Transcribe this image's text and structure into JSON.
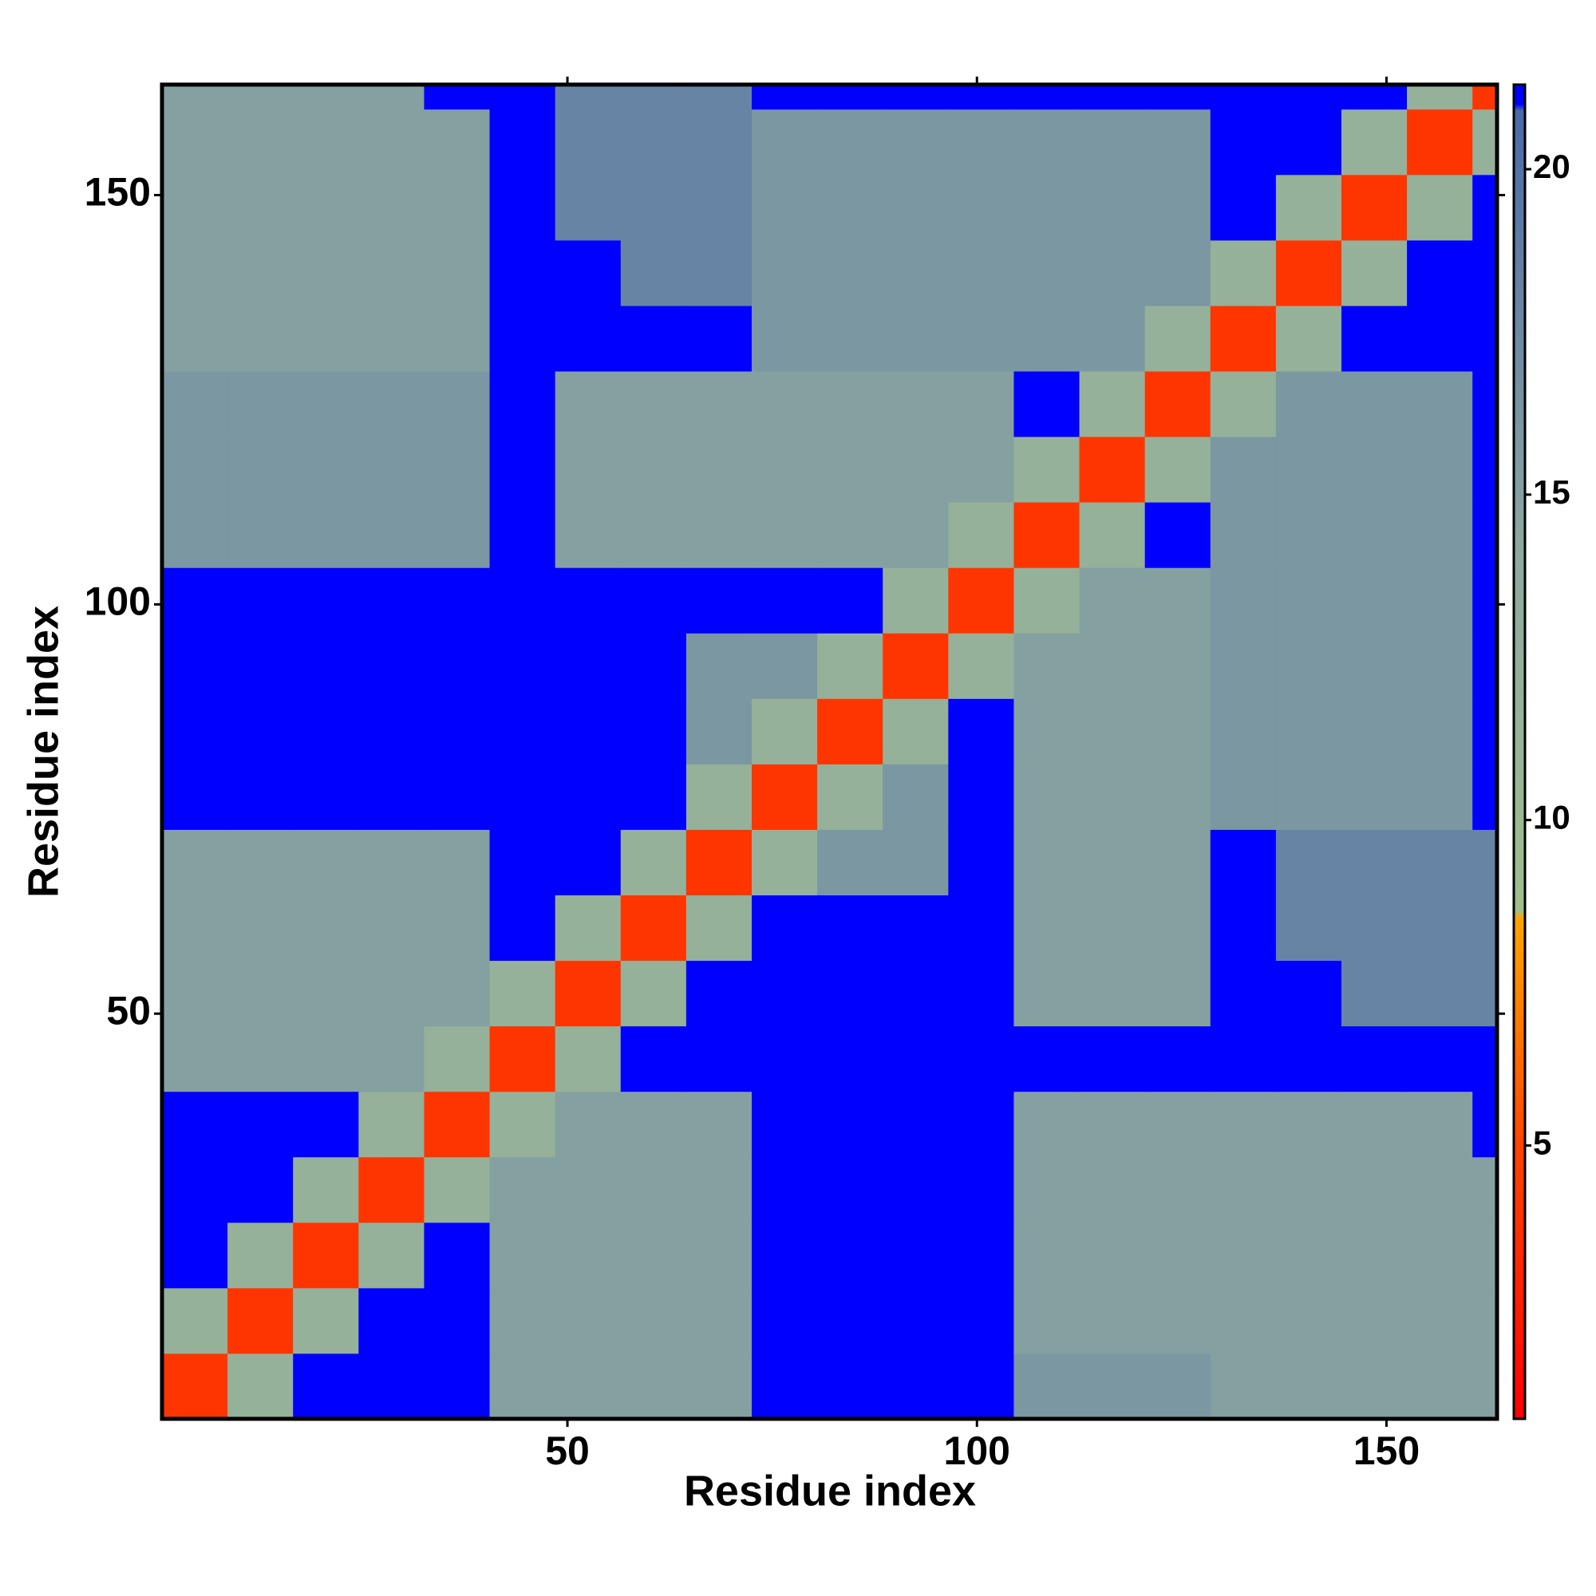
{
  "chart_data": {
    "type": "heatmap",
    "xlabel": "Residue index",
    "ylabel": "Residue index",
    "xlim": [
      0.5,
      163.5
    ],
    "ylim": [
      0.5,
      163.5
    ],
    "xticks": [
      50,
      100,
      150
    ],
    "yticks": [
      50,
      100,
      150
    ],
    "xbins": [
      0.5,
      8.5,
      16.5,
      24.5,
      32.5,
      40.5,
      48.5,
      56.5,
      64.5,
      72.5,
      80.5,
      88.5,
      96.5,
      104.5,
      112.5,
      120.5,
      128.5,
      136.5,
      144.5,
      152.5,
      160.5,
      163.5
    ],
    "ybins": [
      0.5,
      8.5,
      16.5,
      24.5,
      32.5,
      40.5,
      48.5,
      56.5,
      64.5,
      72.5,
      80.5,
      88.5,
      96.5,
      104.5,
      112.5,
      120.5,
      128.5,
      136.5,
      144.5,
      152.5,
      160.5,
      163.5
    ],
    "values": [
      [
        4,
        12,
        21,
        21,
        21,
        15,
        15,
        15,
        15,
        21,
        21,
        21,
        21,
        16,
        16,
        16,
        15,
        15,
        15,
        15,
        15
      ],
      [
        12,
        4,
        12,
        21,
        21,
        15,
        15,
        15,
        15,
        21,
        21,
        21,
        21,
        15,
        15,
        15,
        15,
        15,
        15,
        15,
        15
      ],
      [
        21,
        12,
        4,
        12,
        21,
        15,
        15,
        15,
        15,
        21,
        21,
        21,
        21,
        15,
        15,
        15,
        15,
        15,
        15,
        15,
        15
      ],
      [
        21,
        21,
        12,
        4,
        12,
        15,
        15,
        15,
        15,
        21,
        21,
        21,
        21,
        15,
        15,
        15,
        15,
        15,
        15,
        15,
        15
      ],
      [
        21,
        21,
        21,
        12,
        4,
        12,
        15,
        15,
        15,
        21,
        21,
        21,
        21,
        15,
        15,
        15,
        15,
        15,
        15,
        15,
        21
      ],
      [
        15,
        15,
        15,
        15,
        12,
        4,
        12,
        21,
        21,
        21,
        21,
        21,
        21,
        21,
        21,
        21,
        21,
        21,
        21,
        21,
        21
      ],
      [
        15,
        15,
        15,
        15,
        15,
        12,
        4,
        12,
        21,
        21,
        21,
        21,
        21,
        15,
        15,
        15,
        21,
        21,
        18,
        18,
        18
      ],
      [
        15,
        15,
        15,
        15,
        15,
        21,
        12,
        4,
        12,
        21,
        21,
        21,
        21,
        15,
        15,
        15,
        21,
        18,
        18,
        18,
        18
      ],
      [
        15,
        15,
        15,
        15,
        15,
        21,
        21,
        12,
        4,
        12,
        16,
        16,
        21,
        15,
        15,
        15,
        21,
        18,
        18,
        18,
        18
      ],
      [
        21,
        21,
        21,
        21,
        21,
        21,
        21,
        21,
        12,
        4,
        12,
        16,
        21,
        15,
        15,
        15,
        16,
        16,
        16,
        16,
        21
      ],
      [
        21,
        21,
        21,
        21,
        21,
        21,
        21,
        21,
        16,
        12,
        4,
        12,
        21,
        15,
        15,
        15,
        16,
        16,
        16,
        16,
        21
      ],
      [
        21,
        21,
        21,
        21,
        21,
        21,
        21,
        21,
        16,
        16,
        12,
        4,
        12,
        15,
        15,
        15,
        16,
        16,
        16,
        16,
        21
      ],
      [
        21,
        21,
        21,
        21,
        21,
        21,
        21,
        21,
        21,
        21,
        21,
        12,
        4,
        12,
        15,
        15,
        16,
        16,
        16,
        16,
        21
      ],
      [
        16,
        16,
        16,
        16,
        16,
        21,
        15,
        15,
        15,
        15,
        15,
        15,
        12,
        4,
        12,
        21,
        16,
        16,
        16,
        16,
        21
      ],
      [
        16,
        16,
        16,
        16,
        16,
        21,
        15,
        15,
        15,
        15,
        15,
        15,
        15,
        12,
        4,
        12,
        16,
        16,
        16,
        16,
        21
      ],
      [
        16,
        16,
        16,
        16,
        16,
        21,
        15,
        15,
        15,
        15,
        15,
        15,
        15,
        21,
        12,
        4,
        12,
        16,
        16,
        16,
        21
      ],
      [
        15,
        15,
        15,
        15,
        15,
        21,
        21,
        21,
        21,
        16,
        16,
        16,
        16,
        16,
        16,
        12,
        4,
        12,
        21,
        21,
        21
      ],
      [
        15,
        15,
        15,
        15,
        15,
        21,
        21,
        18,
        18,
        16,
        16,
        16,
        16,
        16,
        16,
        16,
        12,
        4,
        12,
        21,
        21
      ],
      [
        15,
        15,
        15,
        15,
        15,
        21,
        18,
        18,
        18,
        16,
        16,
        16,
        16,
        16,
        16,
        16,
        21,
        12,
        4,
        12,
        21
      ],
      [
        15,
        15,
        15,
        15,
        15,
        21,
        18,
        18,
        18,
        16,
        16,
        16,
        16,
        16,
        16,
        16,
        21,
        21,
        12,
        4,
        12
      ],
      [
        15,
        15,
        15,
        15,
        21,
        21,
        18,
        18,
        18,
        21,
        21,
        21,
        21,
        21,
        21,
        21,
        21,
        21,
        21,
        12,
        4
      ]
    ],
    "zlim": [
      0.8,
      21.3
    ],
    "zticks": [
      5,
      10,
      15,
      20
    ],
    "colorscale": [
      [
        0.8,
        "#ff0000"
      ],
      [
        5,
        "#ff4500"
      ],
      [
        8.5,
        "#ffa500"
      ],
      [
        8.6,
        "#9ebf8c"
      ],
      [
        14,
        "#8fa9a0"
      ],
      [
        20.9,
        "#4a6aa8"
      ],
      [
        21,
        "#0000ff"
      ],
      [
        21.3,
        "#0000ff"
      ]
    ]
  }
}
